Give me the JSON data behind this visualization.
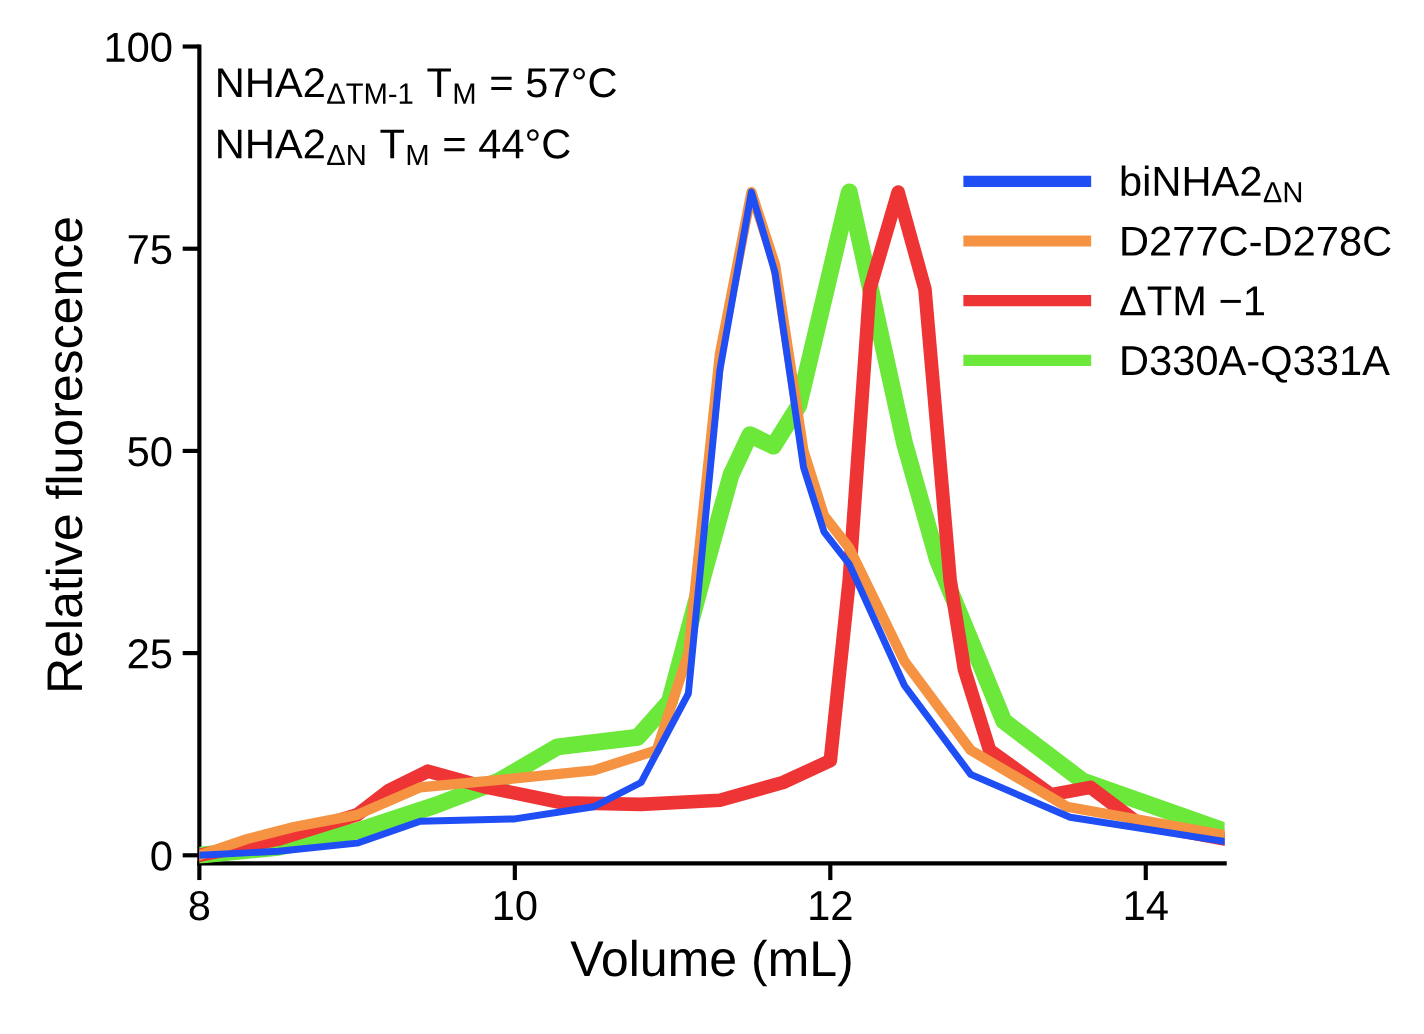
{
  "chart_data": {
    "type": "line",
    "xlabel": "Volume (mL)",
    "ylabel": "Relative fluorescence",
    "annotations": [
      "NHA2$_{ΔTM-1}$ T$_{M}$ = 57°C",
      "NHA2$_{ΔN}$ T$_{M}$ = 44°C"
    ],
    "xlim": [
      8,
      14.5
    ],
    "xticks": [
      8,
      10,
      12,
      14
    ],
    "ylim": [
      -1,
      100
    ],
    "yticks": [
      0,
      25,
      50,
      75,
      100
    ],
    "grid": false,
    "legend": "top right",
    "marker": "none",
    "line_style": "solid",
    "series": [
      {
        "name": "biNHA2$_{ΔN}$",
        "color": "#1f4ef5",
        "x": [
          8,
          8.5,
          9,
          9.4,
          10,
          10.5,
          10.8,
          11.1,
          11.3,
          11.5,
          11.65,
          11.83,
          11.96,
          12.12,
          12.47,
          12.89,
          13.52,
          14.5
        ],
        "values": [
          0,
          0.5,
          1.5,
          4.2,
          4.5,
          6,
          9,
          20,
          60,
          82,
          72,
          48,
          40,
          36,
          21,
          10,
          4.7,
          1.7
        ]
      },
      {
        "name": "D277C-D278C",
        "color": "#f59342",
        "x": [
          8,
          8.3,
          8.6,
          9,
          9.4,
          10,
          10.5,
          10.9,
          11.1,
          11.3,
          11.5,
          11.65,
          11.83,
          11.96,
          12.12,
          12.47,
          12.89,
          13.5,
          14.5
        ],
        "values": [
          0,
          2,
          3.5,
          5,
          8.4,
          9.5,
          10.5,
          13,
          25,
          62,
          82,
          73,
          50,
          42,
          38,
          24,
          13,
          6,
          2.5
        ]
      },
      {
        "name": "ΔTM −1",
        "color": "#ee3434",
        "x": [
          8,
          8.5,
          9,
          9.2,
          9.45,
          9.8,
          10.3,
          10.8,
          11.3,
          11.7,
          12,
          12.12,
          12.25,
          12.43,
          12.6,
          12.76,
          12.85,
          13.01,
          13.4,
          13.65,
          13.95,
          14.5
        ],
        "values": [
          0,
          2,
          5,
          8,
          10.4,
          8.5,
          6.5,
          6.3,
          6.8,
          9,
          11.7,
          34,
          70,
          82,
          70,
          34,
          23,
          13,
          7.5,
          8.4,
          4,
          2
        ]
      },
      {
        "name": "D330A-Q331A",
        "color": "#6ce83a",
        "x": [
          8,
          8.5,
          9,
          9.5,
          9.9,
          10.27,
          10.78,
          10.98,
          11.2,
          11.37,
          11.49,
          11.64,
          11.8,
          12.12,
          12.47,
          12.68,
          13.1,
          13.6,
          14.5
        ],
        "values": [
          0,
          1,
          3,
          6.2,
          9.2,
          13.4,
          14.6,
          19,
          35,
          47,
          52,
          50.6,
          55.6,
          82,
          51,
          36.5,
          16.6,
          9.2,
          3
        ]
      }
    ]
  }
}
